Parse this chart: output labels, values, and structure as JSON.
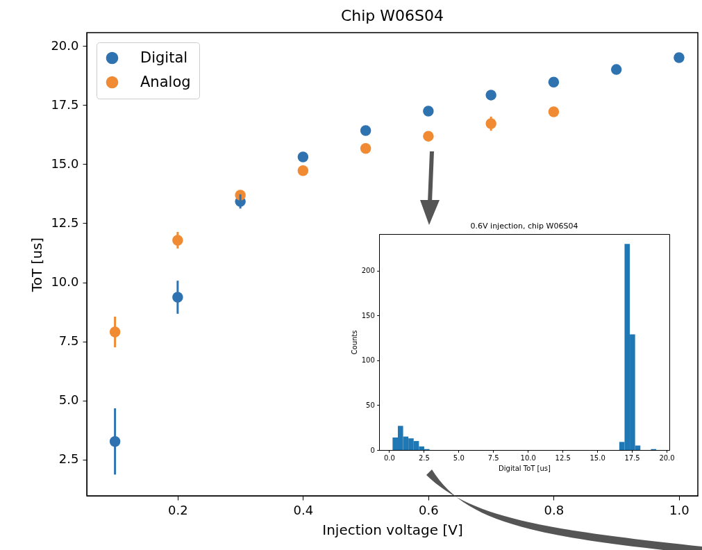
{
  "chart_data": [
    {
      "type": "scatter",
      "title": "Chip W06S04",
      "xlabel": "Injection voltage [V]",
      "ylabel": "ToT [us]",
      "x": [
        0.1,
        0.2,
        0.3,
        0.4,
        0.5,
        0.6,
        0.7,
        0.8,
        0.9,
        1.0
      ],
      "series": [
        {
          "name": "Digital",
          "color": "#2f72b0",
          "values": [
            3.27,
            9.37,
            13.42,
            15.3,
            16.42,
            17.24,
            17.92,
            18.47,
            19.0,
            19.5
          ],
          "errors": [
            1.4,
            0.7,
            0.3,
            null,
            null,
            null,
            null,
            null,
            null,
            null
          ]
        },
        {
          "name": "Analog",
          "color": "#f08a33",
          "values": [
            7.9,
            11.78,
            13.69,
            14.72,
            15.66,
            16.18,
            16.71,
            17.21,
            null,
            null
          ],
          "errors": [
            0.65,
            0.35,
            null,
            null,
            null,
            null,
            0.3,
            0.15,
            null,
            null
          ]
        }
      ],
      "xlim": [
        0.055,
        1.03
      ],
      "ylim": [
        0.97,
        20.56
      ],
      "xticks": [
        0.2,
        0.4,
        0.6,
        0.8,
        {
          "value": 1.0,
          "label": "1.0"
        }
      ],
      "yticks": [
        2.5,
        {
          "value": 5,
          "label": "5.0"
        },
        7.5,
        {
          "value": 10,
          "label": "10.0"
        },
        12.5,
        {
          "value": 15,
          "label": "15.0"
        },
        17.5,
        {
          "value": 20,
          "label": "20.0"
        }
      ],
      "grid": false,
      "legend": "top left",
      "marker": "circle"
    },
    {
      "type": "histogram",
      "title": "0.6V injection, chip W06S04",
      "xlabel": "Digital ToT [us]",
      "ylabel": "Counts",
      "color": "#1f77b4",
      "bins": [
        0.25,
        0.63,
        1.01,
        1.39,
        1.77,
        2.15,
        2.53,
        2.91,
        3.29,
        3.67,
        4.05,
        4.43,
        4.81,
        5.19,
        5.57,
        5.95,
        6.33,
        6.71,
        7.09,
        7.47,
        7.85,
        8.23,
        8.61,
        8.99,
        9.37,
        9.75,
        10.13,
        10.51,
        10.89,
        11.27,
        11.65,
        12.03,
        12.41,
        12.79,
        13.17,
        13.55,
        13.93,
        14.31,
        14.69,
        15.07,
        15.45,
        15.83,
        16.21,
        16.59,
        16.97,
        17.35,
        17.73,
        18.11,
        18.49,
        18.87,
        19.25
      ],
      "values": [
        14,
        27,
        15,
        13,
        10,
        4,
        1,
        0,
        0,
        0,
        0,
        0,
        0,
        0,
        0,
        0,
        0,
        0,
        0,
        0,
        0,
        0,
        0,
        0,
        0,
        0,
        0,
        0,
        0,
        0,
        0,
        0,
        0,
        0,
        0,
        0,
        0,
        0,
        0,
        0,
        0,
        0,
        0,
        9,
        230,
        129,
        5,
        0,
        0,
        1
      ],
      "xlim": [
        -0.72,
        20.2
      ],
      "ylim": [
        0,
        241
      ],
      "xticks": [
        {
          "value": 0,
          "label": "0.0"
        },
        2.5,
        {
          "value": 5,
          "label": "5.0"
        },
        7.5,
        {
          "value": 10,
          "label": "10.0"
        },
        12.5,
        {
          "value": 15,
          "label": "15.0"
        },
        17.5,
        {
          "value": 20,
          "label": "20.0"
        }
      ],
      "yticks": [
        0,
        50,
        100,
        150,
        200
      ],
      "grid": false
    }
  ]
}
